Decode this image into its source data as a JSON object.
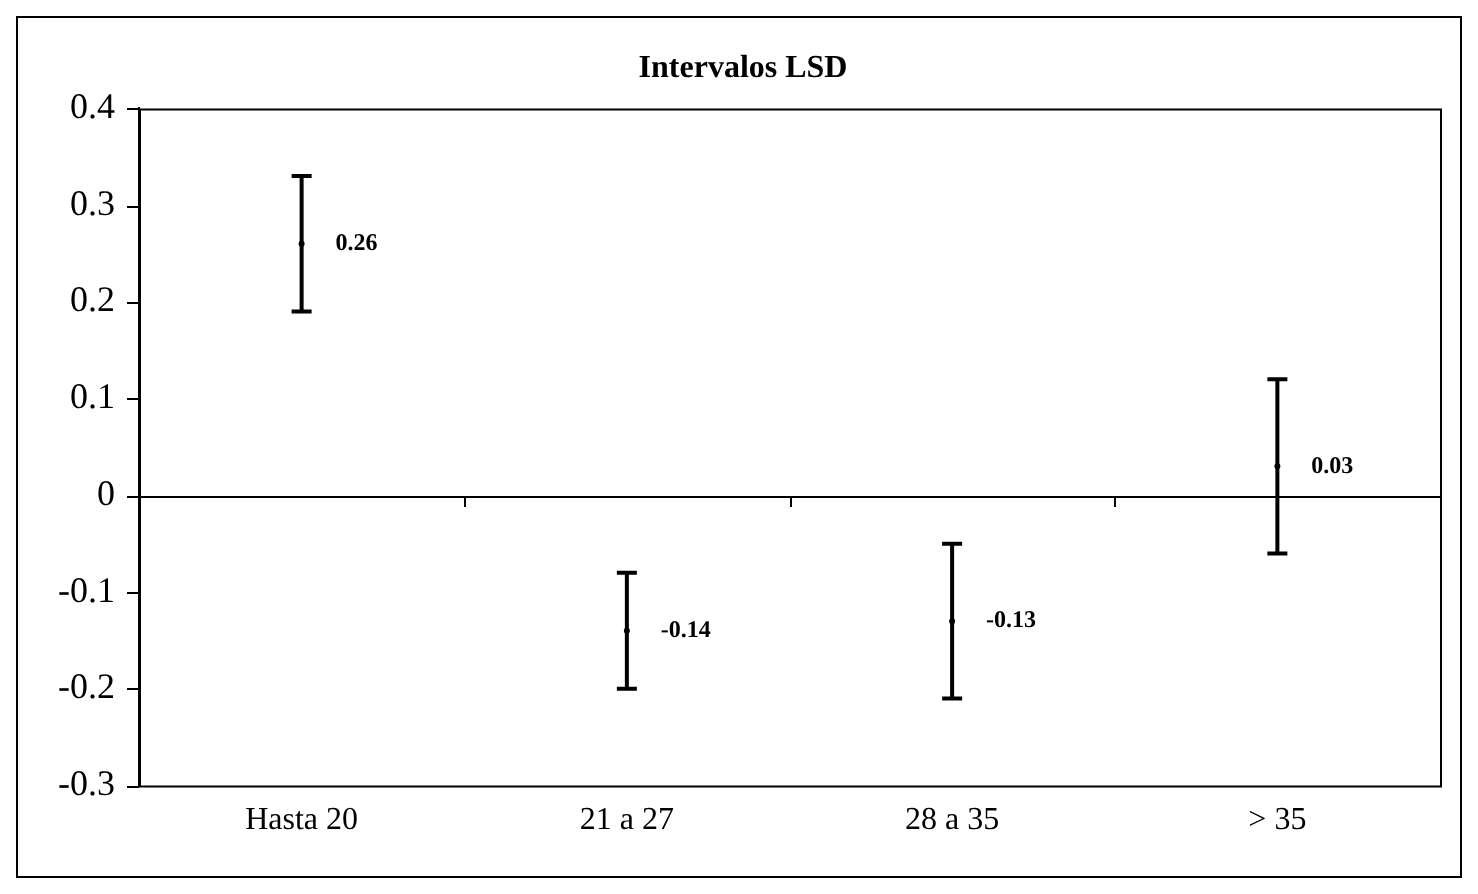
{
  "chart_data": {
    "type": "scatter",
    "title": "Intervalos LSD",
    "categories": [
      "Hasta 20",
      "21 a 27",
      "28 a 35",
      "> 35"
    ],
    "values": [
      0.26,
      -0.14,
      -0.13,
      0.03
    ],
    "errors": [
      0.07,
      0.06,
      0.08,
      0.09
    ],
    "color": "#000000",
    "data_labels": true,
    "ylim": [
      -0.3,
      0.4
    ],
    "yticks": [
      -0.3,
      -0.2,
      -0.1,
      0,
      0.1,
      0.2,
      0.3,
      0.4
    ],
    "legend": false
  }
}
